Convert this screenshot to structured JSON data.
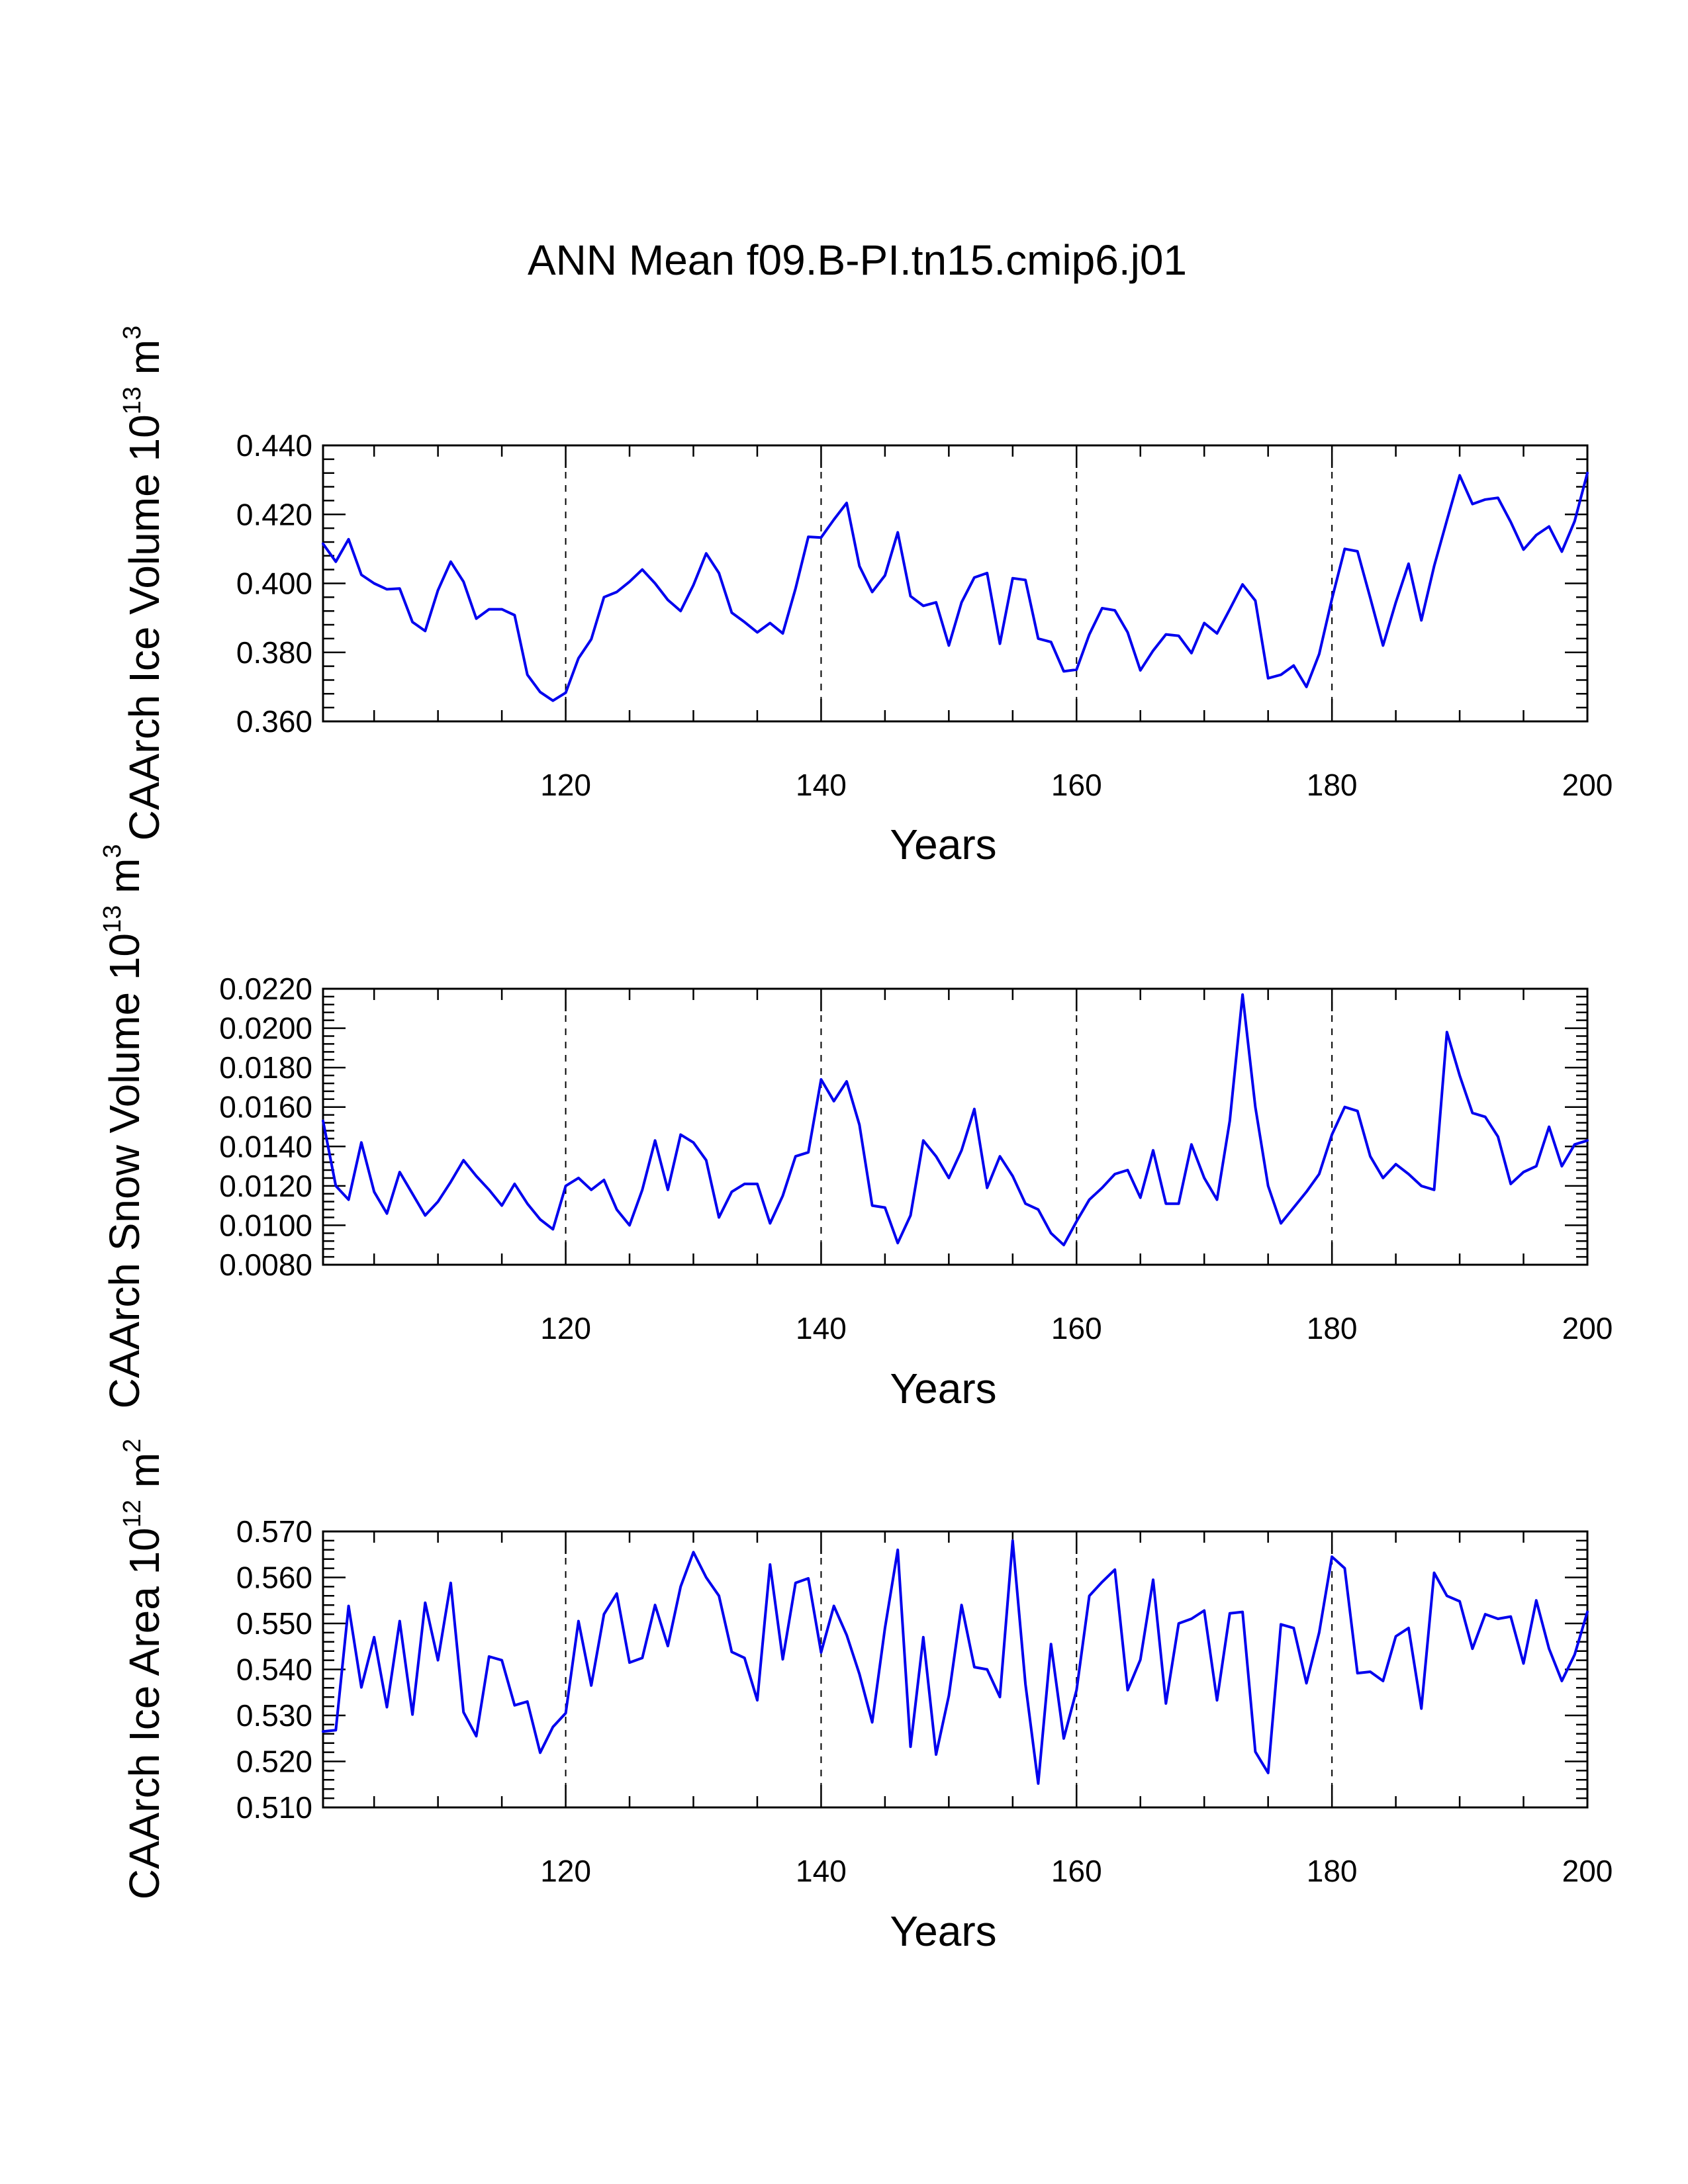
{
  "title": "ANN Mean f09.B-PI.tn15.cmip6.j01",
  "colors": {
    "line": "#0000ee",
    "axis": "#000000",
    "background": "#ffffff"
  },
  "chart_data": [
    {
      "type": "line",
      "name": "ice-volume",
      "ylabel": "CAArch Ice Volume",
      "yunits": {
        "base": "10",
        "exp": "13",
        "unit": " m",
        "unit_exp": "3"
      },
      "xlabel": "Years",
      "xlim": [
        101,
        200
      ],
      "xticks": [
        120,
        140,
        160,
        180,
        200
      ],
      "ylim": [
        0.36,
        0.44
      ],
      "yticks": [
        0.36,
        0.38,
        0.4,
        0.42,
        0.44
      ],
      "ytick_labels": [
        "0.360",
        "0.380",
        "0.400",
        "0.420",
        "0.440"
      ],
      "grid_x": [
        120,
        140,
        160,
        180
      ],
      "x_start": 101,
      "values": [
        0.4115,
        0.4063,
        0.4128,
        0.4025,
        0.4,
        0.3983,
        0.3985,
        0.3888,
        0.3862,
        0.398,
        0.4063,
        0.4005,
        0.3898,
        0.3925,
        0.3925,
        0.3908,
        0.3735,
        0.3685,
        0.366,
        0.3683,
        0.3783,
        0.3838,
        0.396,
        0.3975,
        0.4005,
        0.404,
        0.4,
        0.3952,
        0.392,
        0.3995,
        0.4087,
        0.403,
        0.3915,
        0.3888,
        0.3858,
        0.3885,
        0.3855,
        0.3985,
        0.4135,
        0.4133,
        0.4185,
        0.4233,
        0.405,
        0.3975,
        0.4023,
        0.4148,
        0.3963,
        0.3935,
        0.3945,
        0.382,
        0.3945,
        0.4017,
        0.403,
        0.3825,
        0.4015,
        0.401,
        0.384,
        0.383,
        0.3745,
        0.375,
        0.3852,
        0.3928,
        0.3922,
        0.3858,
        0.3748,
        0.3805,
        0.3852,
        0.3848,
        0.3798,
        0.3885,
        0.3855,
        0.3925,
        0.3997,
        0.395,
        0.3725,
        0.3735,
        0.3762,
        0.37,
        0.3795,
        0.3955,
        0.41,
        0.4093,
        0.3958,
        0.382,
        0.3945,
        0.4057,
        0.3893,
        0.405,
        0.4183,
        0.4313,
        0.423,
        0.4243,
        0.4248,
        0.4178,
        0.4098,
        0.414,
        0.4165,
        0.4092,
        0.418,
        0.432
      ]
    },
    {
      "type": "line",
      "name": "snow-volume",
      "ylabel": "CAArch Snow Volume",
      "yunits": {
        "base": "10",
        "exp": "13",
        "unit": " m",
        "unit_exp": "3"
      },
      "xlabel": "Years",
      "xlim": [
        101,
        200
      ],
      "xticks": [
        120,
        140,
        160,
        180,
        200
      ],
      "ylim": [
        0.008,
        0.022
      ],
      "yticks": [
        0.008,
        0.01,
        0.012,
        0.014,
        0.016,
        0.018,
        0.02,
        0.022
      ],
      "ytick_labels": [
        "0.0080",
        "0.0100",
        "0.0120",
        "0.0140",
        "0.0160",
        "0.0180",
        "0.0200",
        "0.0220"
      ],
      "grid_x": [
        120,
        140,
        160,
        180
      ],
      "x_start": 101,
      "values": [
        0.0153,
        0.012,
        0.0113,
        0.0142,
        0.0117,
        0.0106,
        0.0127,
        0.0116,
        0.0105,
        0.0112,
        0.0122,
        0.0133,
        0.0125,
        0.0118,
        0.011,
        0.0121,
        0.0111,
        0.0103,
        0.0098,
        0.012,
        0.0124,
        0.0118,
        0.0123,
        0.0108,
        0.01,
        0.0118,
        0.0143,
        0.0118,
        0.0146,
        0.0142,
        0.0133,
        0.0104,
        0.0117,
        0.0121,
        0.0121,
        0.0101,
        0.0115,
        0.0135,
        0.0137,
        0.0174,
        0.0163,
        0.0173,
        0.0151,
        0.011,
        0.0109,
        0.0091,
        0.0105,
        0.0143,
        0.0135,
        0.0124,
        0.0138,
        0.0159,
        0.0119,
        0.0135,
        0.0125,
        0.0111,
        0.0108,
        0.0096,
        0.009,
        0.0102,
        0.0113,
        0.0119,
        0.0126,
        0.0128,
        0.0114,
        0.0138,
        0.0111,
        0.0111,
        0.0141,
        0.0124,
        0.0113,
        0.0153,
        0.0217,
        0.016,
        0.012,
        0.0101,
        0.0109,
        0.0117,
        0.0126,
        0.0146,
        0.016,
        0.0158,
        0.0135,
        0.0124,
        0.0131,
        0.0126,
        0.012,
        0.0118,
        0.0198,
        0.0176,
        0.0157,
        0.0155,
        0.0145,
        0.0121,
        0.0127,
        0.013,
        0.015,
        0.013,
        0.0141,
        0.0143
      ]
    },
    {
      "type": "line",
      "name": "ice-area",
      "ylabel": "CAArch Ice Area",
      "yunits": {
        "base": "10",
        "exp": "12",
        "unit": " m",
        "unit_exp": "2"
      },
      "xlabel": "Years",
      "xlim": [
        101,
        200
      ],
      "xticks": [
        120,
        140,
        160,
        180,
        200
      ],
      "ylim": [
        0.51,
        0.57
      ],
      "yticks": [
        0.51,
        0.52,
        0.53,
        0.54,
        0.55,
        0.56,
        0.57
      ],
      "ytick_labels": [
        "0.510",
        "0.520",
        "0.530",
        "0.540",
        "0.550",
        "0.560",
        "0.570"
      ],
      "grid_x": [
        120,
        140,
        160,
        180
      ],
      "x_start": 101,
      "values": [
        0.5265,
        0.5268,
        0.5538,
        0.5361,
        0.547,
        0.5318,
        0.5505,
        0.5302,
        0.5545,
        0.542,
        0.5588,
        0.5307,
        0.5255,
        0.5428,
        0.542,
        0.5322,
        0.533,
        0.5219,
        0.5275,
        0.5305,
        0.5505,
        0.5365,
        0.552,
        0.5565,
        0.5415,
        0.5425,
        0.554,
        0.5451,
        0.558,
        0.5655,
        0.56,
        0.556,
        0.5438,
        0.5425,
        0.5333,
        0.5628,
        0.5422,
        0.5588,
        0.5598,
        0.5437,
        0.5538,
        0.5475,
        0.539,
        0.5285,
        0.549,
        0.566,
        0.5232,
        0.547,
        0.5215,
        0.5343,
        0.554,
        0.5405,
        0.54,
        0.534,
        0.568,
        0.5368,
        0.5152,
        0.5455,
        0.525,
        0.5355,
        0.556,
        0.559,
        0.5617,
        0.5355,
        0.5421,
        0.5595,
        0.5326,
        0.55,
        0.551,
        0.5528,
        0.5333,
        0.5522,
        0.5525,
        0.5221,
        0.5175,
        0.5498,
        0.549,
        0.537,
        0.548,
        0.5645,
        0.562,
        0.5392,
        0.5395,
        0.5375,
        0.5472,
        0.549,
        0.5315,
        0.561,
        0.556,
        0.5548,
        0.5445,
        0.552,
        0.551,
        0.5515,
        0.5413,
        0.555,
        0.5445,
        0.5375,
        0.5432,
        0.5525
      ]
    }
  ]
}
